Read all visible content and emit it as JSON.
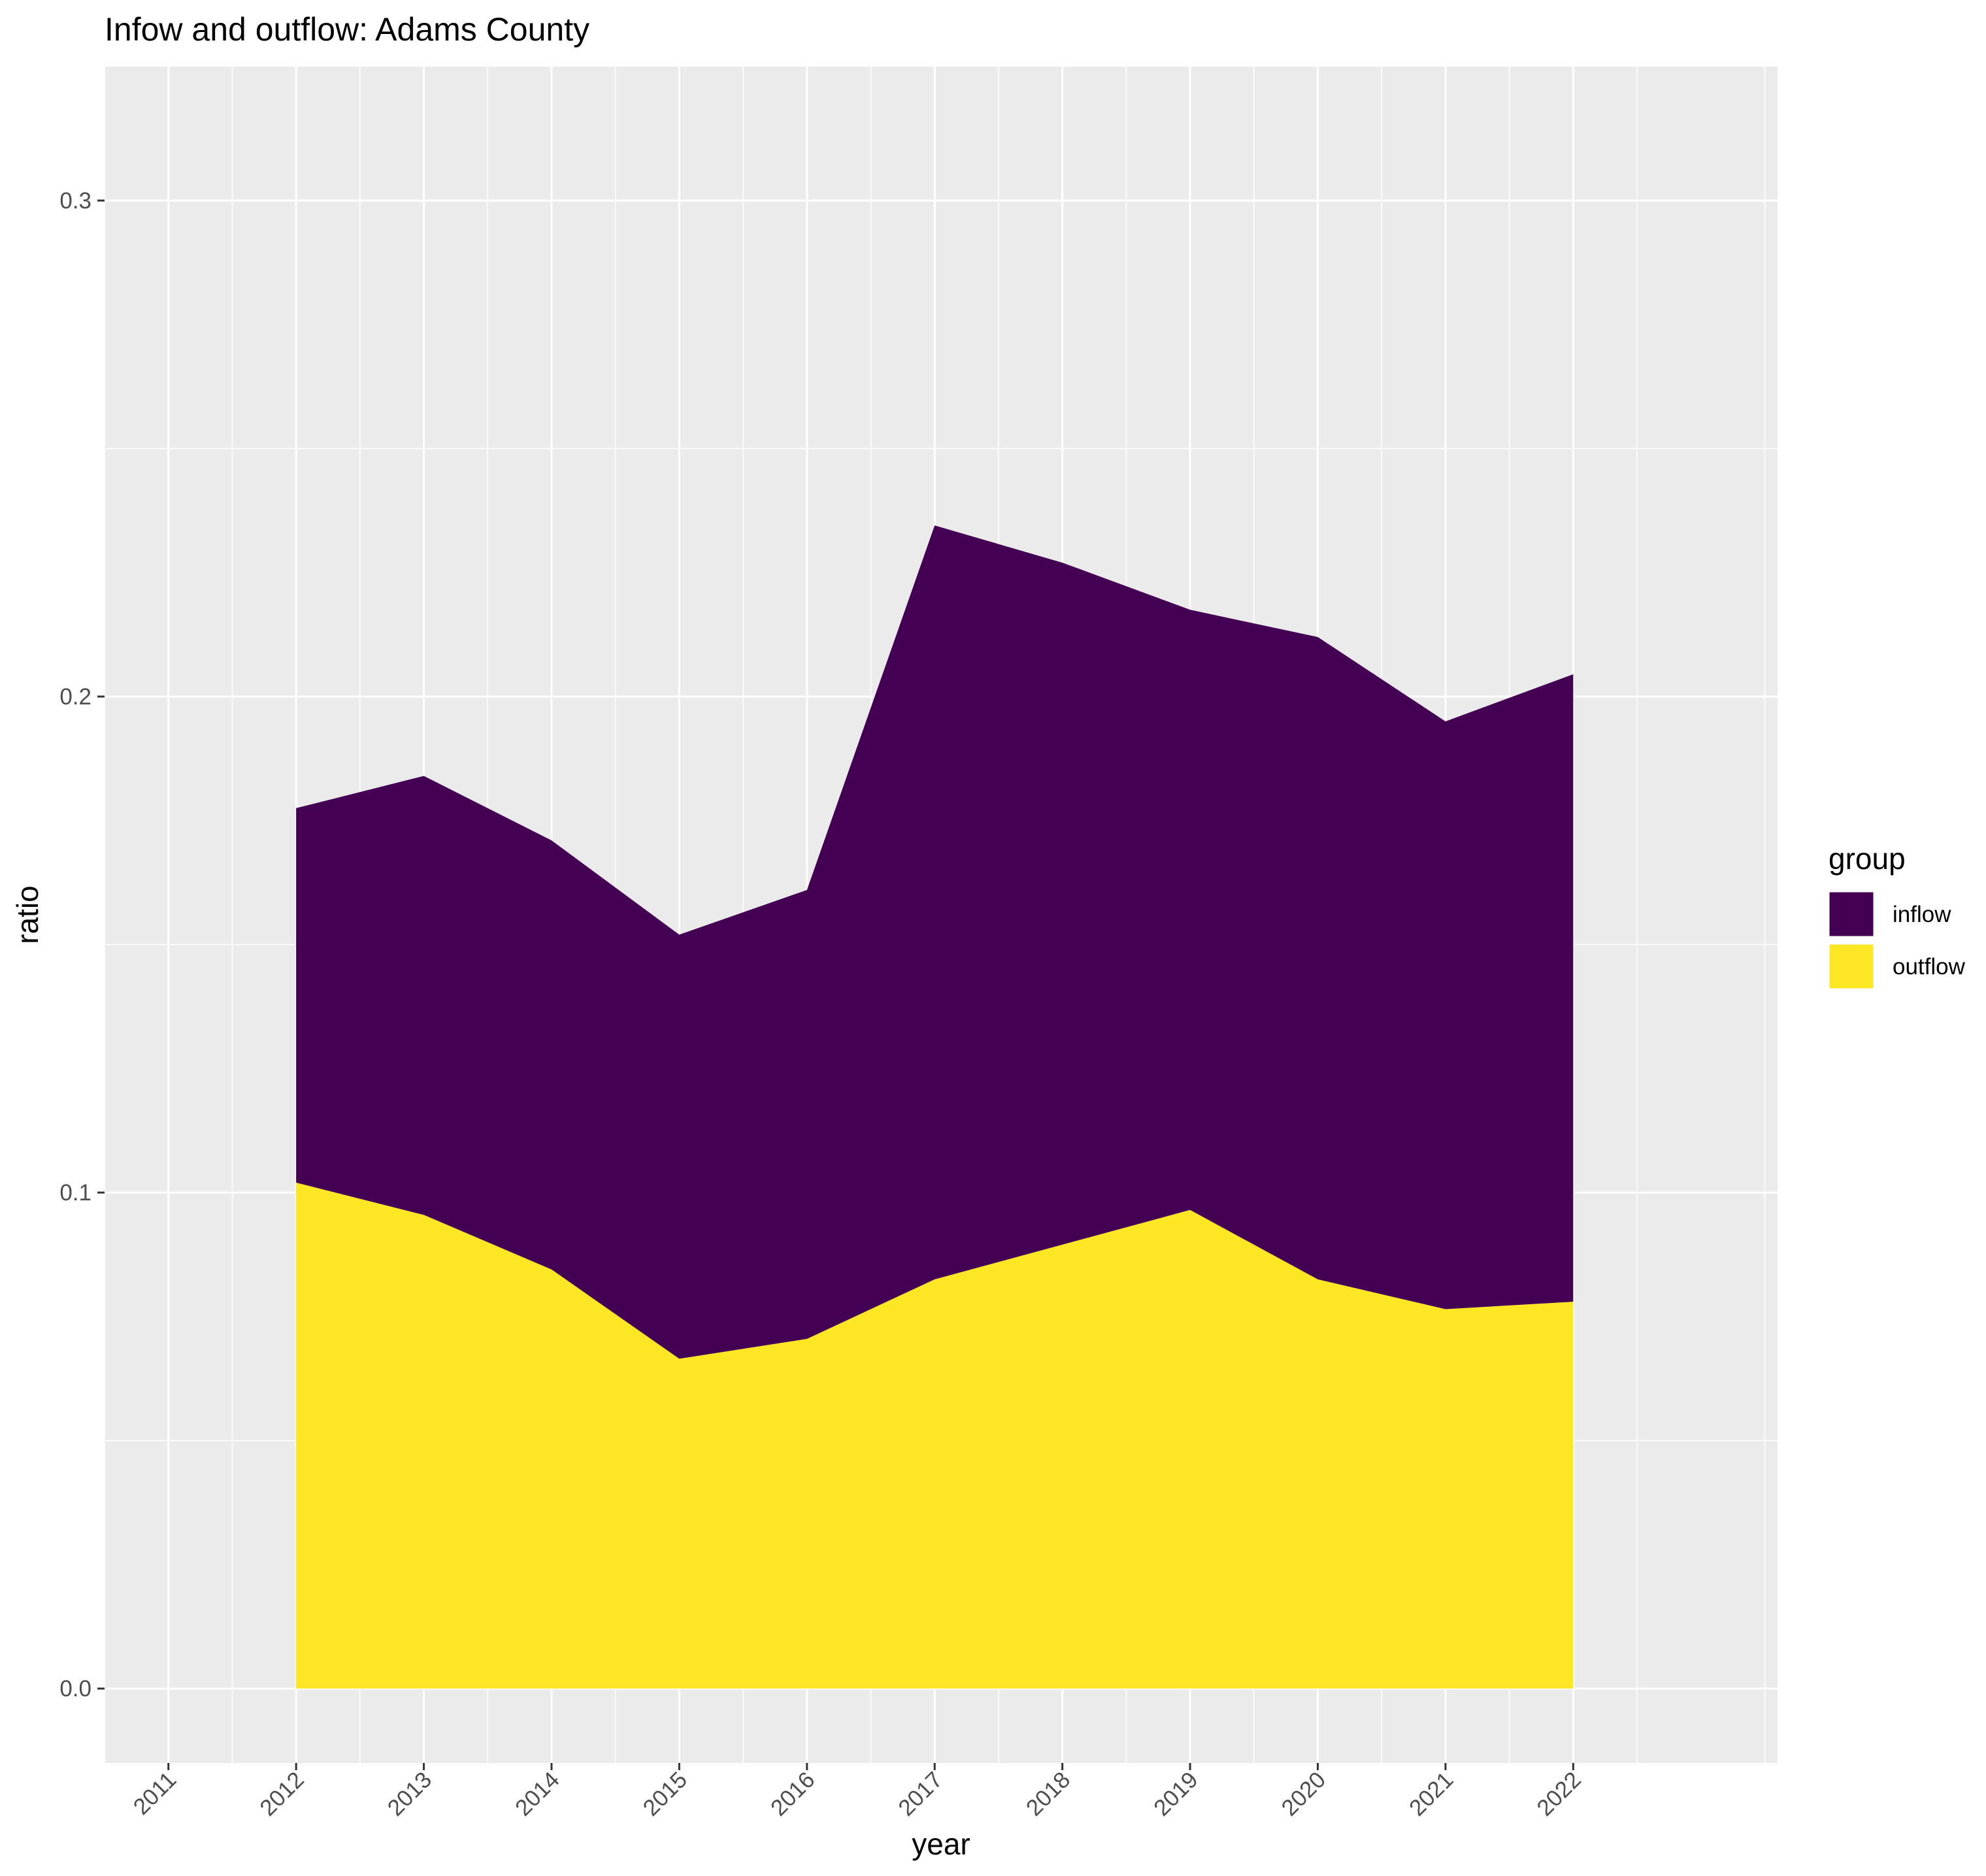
{
  "chart_data": {
    "type": "area",
    "stacked": true,
    "title": "Infow and outflow:  Adams County",
    "xlabel": "year",
    "ylabel": "ratio",
    "x": [
      2012,
      2013,
      2014,
      2015,
      2016,
      2017,
      2018,
      2019,
      2020,
      2021,
      2022
    ],
    "x_tick_labels": [
      "2011",
      "2012",
      "2013",
      "2014",
      "2015",
      "2016",
      "2017",
      "2018",
      "2019",
      "2020",
      "2021",
      "2022"
    ],
    "y_ticks": [
      "0.0",
      "0.1",
      "0.2",
      "0.3"
    ],
    "xlim": [
      2010.5,
      2023.6
    ],
    "ylim": [
      -0.015,
      0.327
    ],
    "grid": true,
    "legend": {
      "title": "group",
      "position": "right"
    },
    "series": [
      {
        "name": "inflow",
        "color": "#440154",
        "values": [
          0.0755,
          0.0885,
          0.0865,
          0.0855,
          0.0905,
          0.152,
          0.1375,
          0.121,
          0.1295,
          0.1185,
          0.1265
        ]
      },
      {
        "name": "outflow",
        "color": "#FDE725",
        "values": [
          0.102,
          0.0955,
          0.0845,
          0.0665,
          0.0705,
          0.0825,
          0.0895,
          0.0965,
          0.0825,
          0.0765,
          0.078
        ]
      }
    ]
  }
}
